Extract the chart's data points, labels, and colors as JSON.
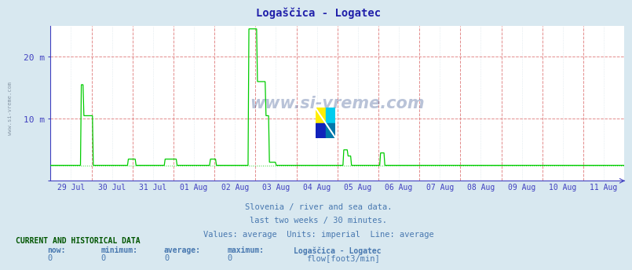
{
  "title": "Logaščica - Logatec",
  "bg_color": "#d8e8f0",
  "plot_bg_color": "#ffffff",
  "title_color": "#2020aa",
  "grid_color_minor": "#c8d8e0",
  "grid_color_red": "#e08080",
  "line_color": "#00cc00",
  "axis_color": "#4040c0",
  "ylabel_color": "#4040c0",
  "tick_color": "#4040c0",
  "text_color": "#4878b0",
  "ytick_labels": [
    "",
    "10 m",
    "20 m"
  ],
  "ytick_vals": [
    0,
    10,
    20
  ],
  "ylim": [
    0,
    25
  ],
  "xlim": [
    0,
    14
  ],
  "xtick_labels": [
    "29 Jul",
    "30 Jul",
    "31 Jul",
    "01 Aug",
    "02 Aug",
    "03 Aug",
    "04 Aug",
    "05 Aug",
    "06 Aug",
    "07 Aug",
    "08 Aug",
    "09 Aug",
    "10 Aug",
    "11 Aug"
  ],
  "subtitle_lines": [
    "Slovenia / river and sea data.",
    "last two weeks / 30 minutes.",
    "Values: average  Units: imperial  Line: average"
  ],
  "footer_header": "CURRENT AND HISTORICAL DATA",
  "footer_col_headers": [
    "now:",
    "minimum:",
    "average:",
    "maximum:",
    "Logaščica - Logatec"
  ],
  "footer_vals": [
    "0",
    "0",
    "0",
    "0"
  ],
  "footer_legend_label": "flow[foot3/min]",
  "watermark": "www.si-vreme.com",
  "baseline_y": 2.5,
  "logo_colors": [
    "#ffee00",
    "#00ccff",
    "#0000aa",
    "#008899"
  ]
}
